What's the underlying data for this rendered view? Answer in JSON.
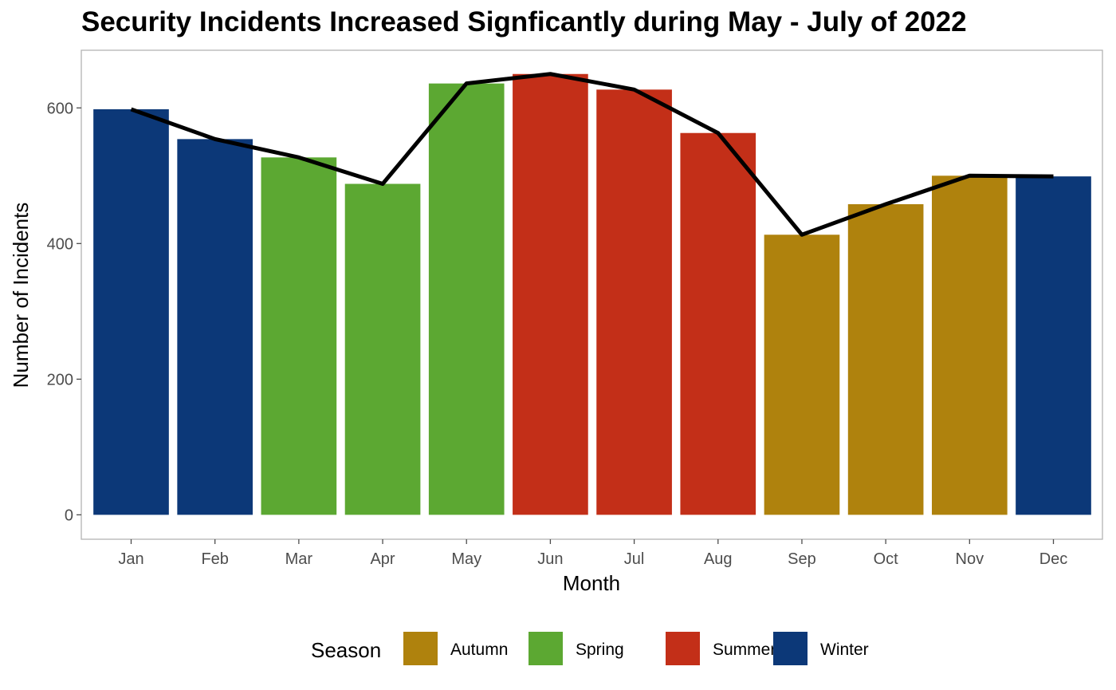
{
  "chart_data": {
    "type": "bar",
    "title": "Security Incidents Increased Signficantly during May - July of 2022",
    "xlabel": "Month",
    "ylabel": "Number of Incidents",
    "categories": [
      "Jan",
      "Feb",
      "Mar",
      "Apr",
      "May",
      "Jun",
      "Jul",
      "Aug",
      "Sep",
      "Oct",
      "Nov",
      "Dec"
    ],
    "values": [
      598,
      554,
      527,
      488,
      636,
      650,
      627,
      563,
      413,
      458,
      500,
      499
    ],
    "season": [
      "Winter",
      "Winter",
      "Spring",
      "Spring",
      "Spring",
      "Summer",
      "Summer",
      "Summer",
      "Autumn",
      "Autumn",
      "Autumn",
      "Winter"
    ],
    "line_values": [
      598,
      554,
      527,
      488,
      636,
      650,
      627,
      563,
      413,
      458,
      500,
      499
    ],
    "ylim": [
      -36,
      685
    ],
    "yticks": [
      0,
      200,
      400,
      600
    ],
    "grid": false,
    "legend": {
      "title": "Season",
      "position": "bottom",
      "items": [
        {
          "label": "Autumn",
          "color": "#AF820D"
        },
        {
          "label": "Spring",
          "color": "#5CA832"
        },
        {
          "label": "Summer",
          "color": "#C32F18"
        },
        {
          "label": "Winter",
          "color": "#0C3878"
        }
      ]
    },
    "season_colors": {
      "Autumn": "#AF820D",
      "Spring": "#5CA832",
      "Summer": "#C32F18",
      "Winter": "#0C3878"
    },
    "line_color": "#000000"
  }
}
